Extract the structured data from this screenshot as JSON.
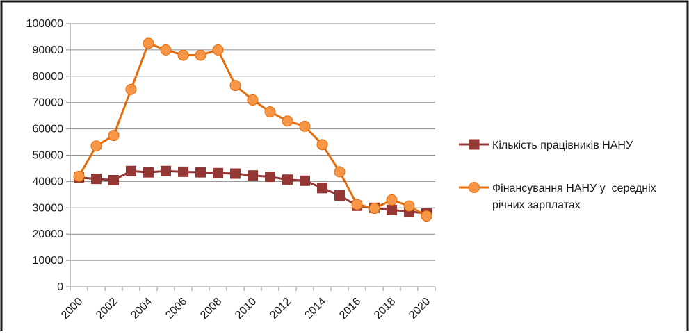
{
  "chart_data": {
    "type": "line",
    "x": [
      2000,
      2001,
      2002,
      2003,
      2004,
      2005,
      2006,
      2007,
      2008,
      2009,
      2010,
      2011,
      2012,
      2013,
      2014,
      2015,
      2016,
      2017,
      2018,
      2019,
      2020
    ],
    "x_tick_labels": [
      "2000",
      "2002",
      "2004",
      "2006",
      "2008",
      "2010",
      "2012",
      "2014",
      "2016",
      "2018",
      "2020"
    ],
    "y_tick_labels": [
      "0",
      "10000",
      "20000",
      "30000",
      "40000",
      "50000",
      "60000",
      "70000",
      "80000",
      "90000",
      "100000"
    ],
    "ylim": [
      0,
      100000
    ],
    "grid": "horizontal",
    "legend_position": "right",
    "series": [
      {
        "name": "Кількість працівників НАНУ",
        "color": "#953735",
        "marker": "square",
        "values": [
          41500,
          41000,
          40500,
          44000,
          43500,
          44000,
          43700,
          43500,
          43200,
          43000,
          42300,
          41800,
          40700,
          40300,
          37500,
          34700,
          30800,
          30000,
          29200,
          28600,
          27900
        ]
      },
      {
        "name": "Фінансування НАНУ у  середніх річних зарплатах",
        "name_lines": [
          "Фінансування НАНУ у  середніх",
          "річних зарплатах"
        ],
        "color": "#E46C0A",
        "marker_color": "#F79646",
        "marker": "circle",
        "values": [
          42000,
          53500,
          57500,
          75000,
          92500,
          90000,
          88000,
          88000,
          90000,
          76500,
          71000,
          66500,
          63000,
          61000,
          54000,
          43700,
          31300,
          29800,
          33000,
          30700,
          26900
        ]
      }
    ]
  }
}
